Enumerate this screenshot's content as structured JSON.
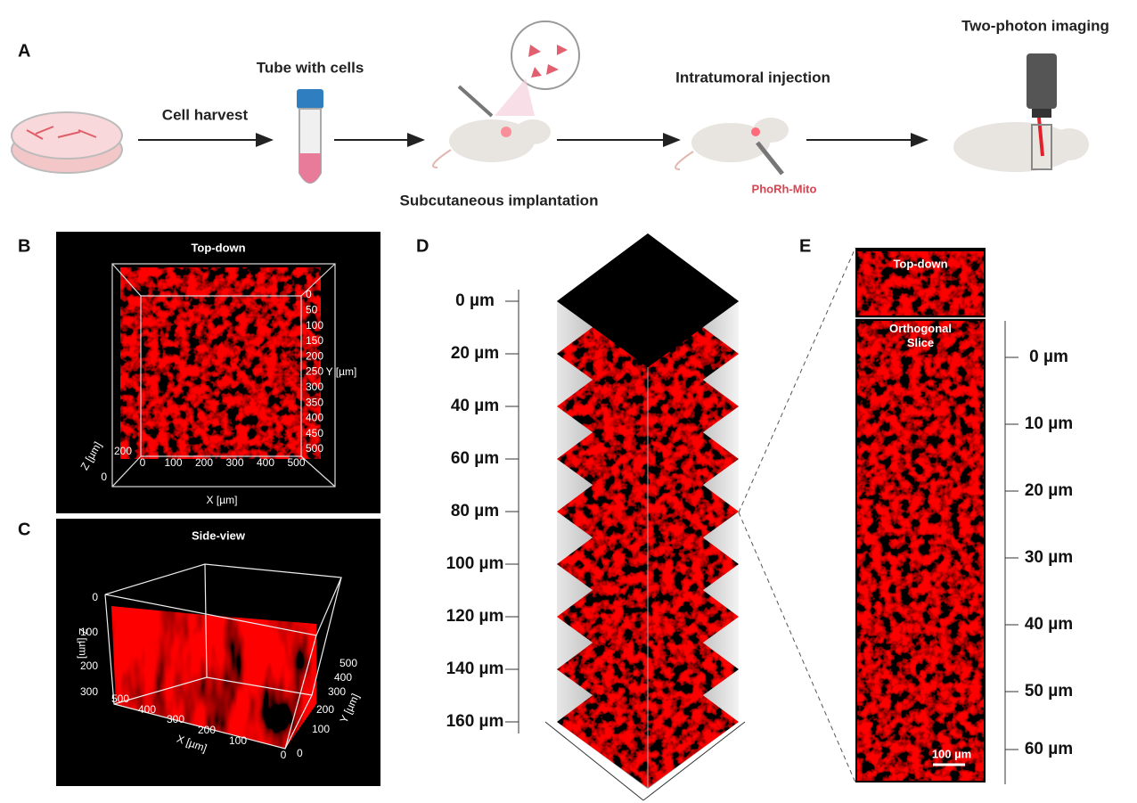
{
  "panel_a": {
    "label": "A",
    "cell_harvest": "Cell harvest",
    "tube": "Tube with cells",
    "implantation": "Subcutaneous implantation",
    "injection": "Intratumoral injection",
    "probe": "PhoRh-Mito",
    "imaging": "Two-photon imaging"
  },
  "panel_b": {
    "label": "B",
    "title": "Top-down",
    "x_label": "X [µm]",
    "y_label": "Y [µm]",
    "z_label": "Z [µm]",
    "x_ticks": [
      "0",
      "100",
      "200",
      "300",
      "400",
      "500"
    ],
    "y_ticks": [
      "0",
      "50",
      "100",
      "150",
      "200",
      "250",
      "300",
      "350",
      "400",
      "450",
      "500"
    ],
    "z_ticks": [
      "200",
      "0"
    ]
  },
  "panel_c": {
    "label": "C",
    "title": "Side-view",
    "x_label": "X [µm]",
    "y_label": "Y [µm]",
    "z_label": "Z [µm]",
    "z_ticks": [
      "0",
      "100",
      "200",
      "300"
    ],
    "x_ticks": [
      "500",
      "400",
      "300",
      "200",
      "100",
      "0"
    ],
    "y_ticks": [
      "0",
      "100",
      "200",
      "300",
      "400",
      "500"
    ]
  },
  "panel_d": {
    "label": "D",
    "depths": [
      "0 µm",
      "20 µm",
      "40 µm",
      "60 µm",
      "80 µm",
      "100 µm",
      "120 µm",
      "140 µm",
      "160 µm"
    ]
  },
  "panel_e": {
    "label": "E",
    "top_title": "Top-down",
    "slice_title": "Orthogonal Slice",
    "depths": [
      "0 µm",
      "10 µm",
      "20 µm",
      "30 µm",
      "40 µm",
      "50 µm",
      "60 µm"
    ],
    "scale_bar": "100 µm"
  }
}
